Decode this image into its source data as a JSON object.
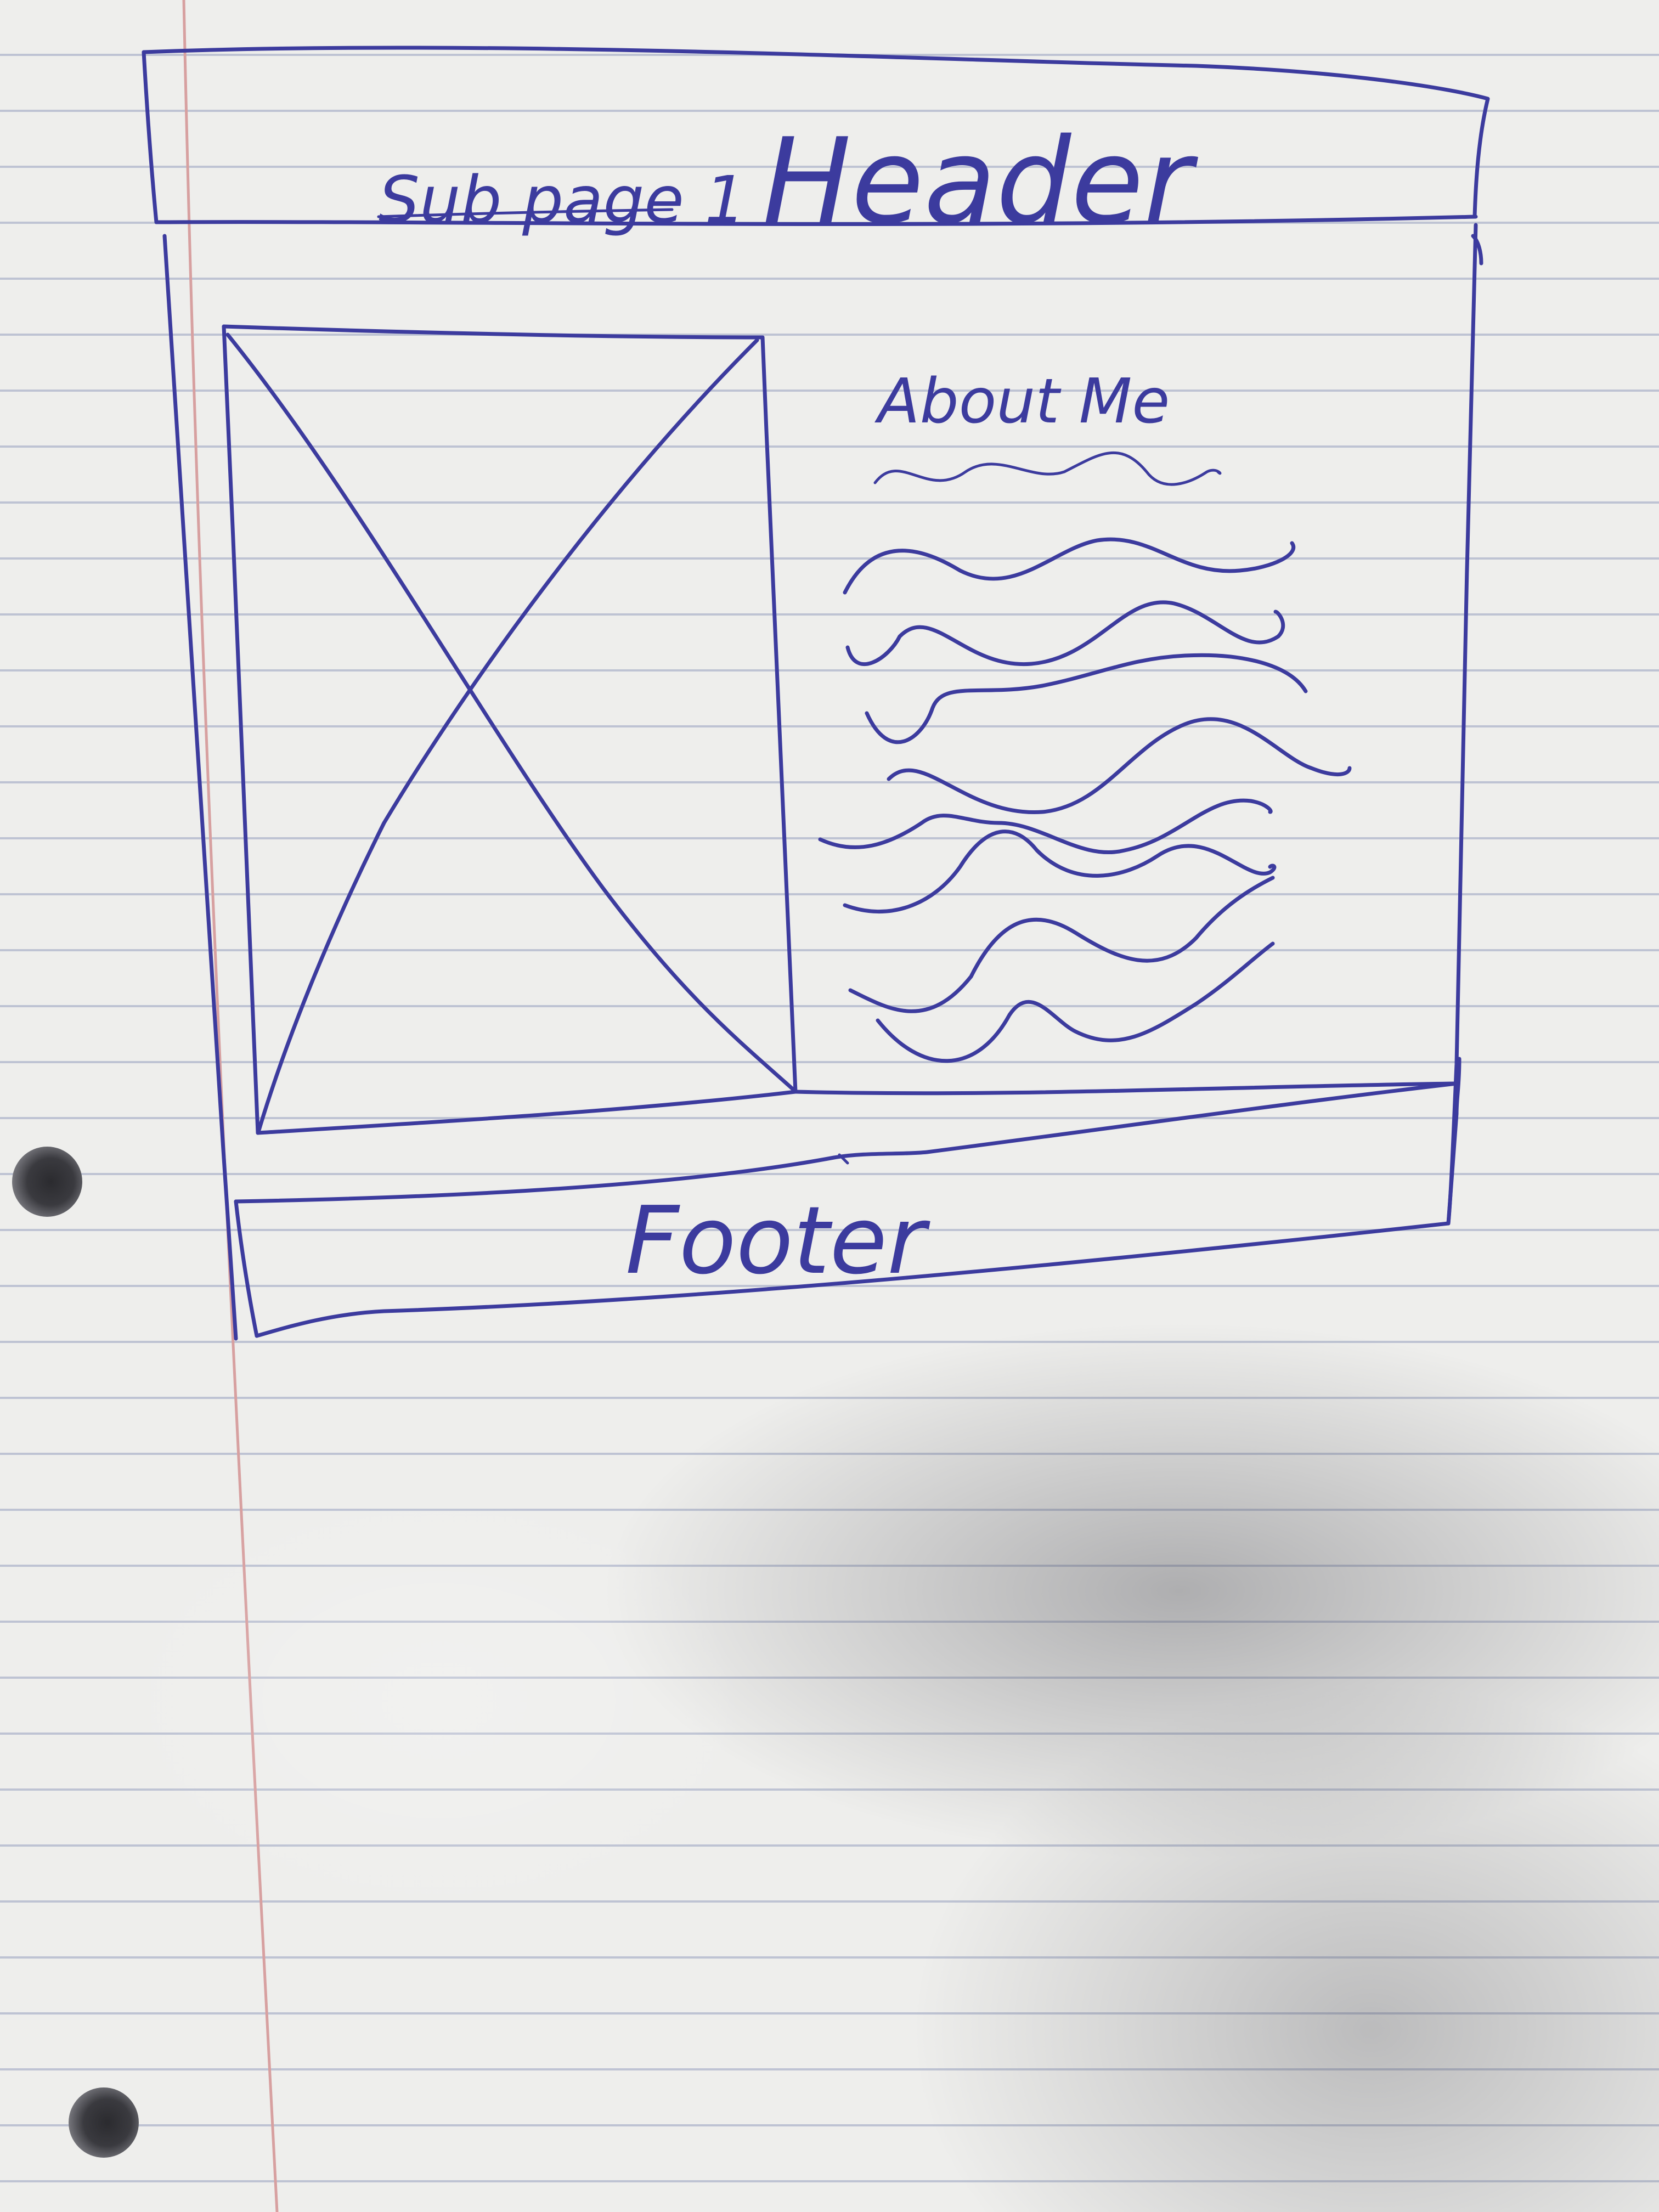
{
  "header": {
    "subpage_label": "Sub page 1",
    "title": "Header"
  },
  "content": {
    "image_placeholder": "image-placeholder-x",
    "about_heading": "About Me",
    "text_placeholder_lines": 7
  },
  "footer": {
    "label": "Footer"
  },
  "colors": {
    "ink": "#3c3b9e",
    "paper": "#eeeeec",
    "rule_lines": "#96a0be",
    "margin_line": "#d7a0a0"
  }
}
